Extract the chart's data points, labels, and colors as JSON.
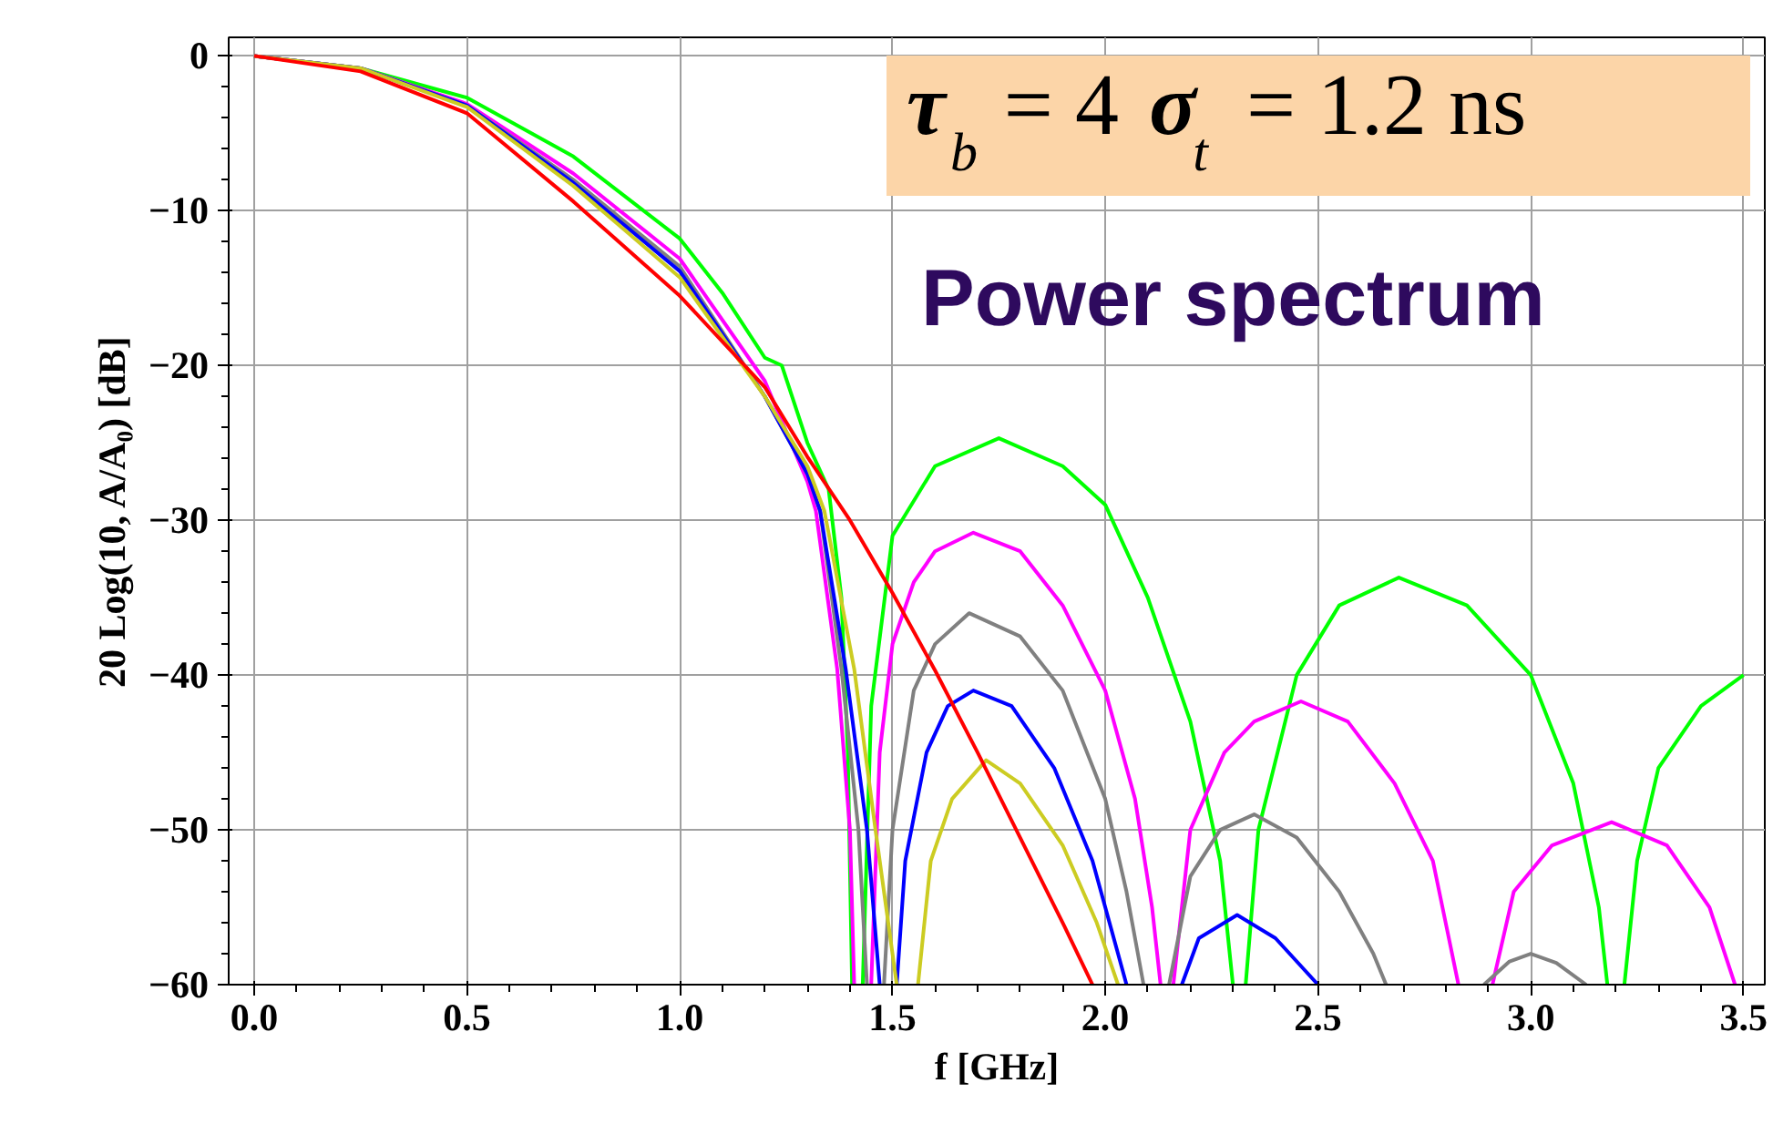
{
  "chart_data": {
    "type": "line",
    "xlabel": "f [GHz]",
    "ylabel": "20 Log(10, A/A₀) [dB]",
    "annotations": [
      "τ$_{b}$ = 4 σ$_{t}$ = 1.2 ns",
      "Power spectrum"
    ],
    "xlim": [
      -0.06,
      3.55
    ],
    "ylim": [
      -60,
      1.2
    ],
    "xticks": [
      {
        "value": 0,
        "label": "0.0"
      },
      {
        "value": 0.5,
        "label": "0.5"
      },
      {
        "value": 1,
        "label": "1.0"
      },
      {
        "value": 1.5,
        "label": "1.5"
      },
      {
        "value": 2,
        "label": "2.0"
      },
      {
        "value": 2.5,
        "label": "2.5"
      },
      {
        "value": 3,
        "label": "3.0"
      },
      {
        "value": 3.5,
        "label": "3.5"
      }
    ],
    "yticks": [
      0,
      {
        "value": -10,
        "label": "−10"
      },
      {
        "value": -20,
        "label": "−20"
      },
      {
        "value": -30,
        "label": "−30"
      },
      {
        "value": -40,
        "label": "−40"
      },
      {
        "value": -50,
        "label": "−50"
      },
      {
        "value": -60,
        "label": "−60"
      }
    ],
    "grid": true,
    "line_style": "solid",
    "marker": "none",
    "series": [
      {
        "color": "#00ff00",
        "x": [
          0,
          0.25,
          0.5,
          0.75,
          1.0,
          1.1,
          1.2,
          1.24,
          1.3,
          1.35,
          1.38,
          1.395,
          1.405,
          1.42,
          1.43,
          1.45,
          1.5,
          1.6,
          1.75,
          1.9,
          2.0,
          2.1,
          2.2,
          2.27,
          2.3,
          2.315,
          2.33,
          2.36,
          2.45,
          2.55,
          2.69,
          2.85,
          3.0,
          3.1,
          3.16,
          3.18,
          3.2,
          3.22,
          3.25,
          3.3,
          3.4,
          3.5
        ],
        "values": [
          0,
          -0.8,
          -2.7,
          -6.5,
          -11.8,
          -15.3,
          -19.5,
          -20,
          -25,
          -28,
          -35,
          -45,
          -60,
          null,
          -60,
          -42,
          -31,
          -26.5,
          -24.7,
          -26.5,
          -29,
          -35,
          -43,
          -52,
          -60,
          null,
          -60,
          -50,
          -40,
          -35.5,
          -33.7,
          -35.5,
          -40,
          -47,
          -55,
          -60,
          null,
          -60,
          -52,
          -46,
          -42,
          -40
        ]
      },
      {
        "color": "#ff00ff",
        "x": [
          0,
          0.25,
          0.5,
          0.75,
          1.0,
          1.2,
          1.3,
          1.32,
          1.37,
          1.4,
          1.41,
          1.43,
          1.45,
          1.47,
          1.5,
          1.55,
          1.6,
          1.69,
          1.8,
          1.9,
          2.0,
          2.07,
          2.11,
          2.13,
          2.145,
          2.16,
          2.2,
          2.28,
          2.35,
          2.46,
          2.57,
          2.68,
          2.77,
          2.83,
          2.87,
          2.91,
          2.96,
          3.05,
          3.19,
          3.32,
          3.42,
          3.48
        ],
        "values": [
          0,
          -0.8,
          -3.1,
          -7.6,
          -13.1,
          -21,
          -27.5,
          -29.4,
          -39.6,
          -50,
          -60,
          null,
          -60,
          -45,
          -38,
          -34,
          -32,
          -30.8,
          -32,
          -35.5,
          -41,
          -48,
          -55,
          -60,
          null,
          -60,
          -50,
          -45,
          -43,
          -41.7,
          -43,
          -47,
          -52,
          -60,
          null,
          -60,
          -54,
          -51,
          -49.5,
          -51,
          -55,
          -60
        ]
      },
      {
        "color": "#808080",
        "x": [
          0,
          0.25,
          0.5,
          0.75,
          1.0,
          1.2,
          1.3,
          1.33,
          1.38,
          1.42,
          1.44,
          1.46,
          1.48,
          1.5,
          1.55,
          1.6,
          1.68,
          1.8,
          1.9,
          2.0,
          2.05,
          2.09,
          2.12,
          2.15,
          2.2,
          2.27,
          2.35,
          2.45,
          2.55,
          2.63,
          2.66,
          2.78,
          2.89,
          2.95,
          3.0,
          3.06,
          3.13
        ],
        "values": [
          0,
          -0.8,
          -3.2,
          -8.0,
          -13.6,
          -22,
          -27,
          -29.4,
          -39.6,
          -50,
          -60,
          null,
          -60,
          -50,
          -41,
          -38,
          -36,
          -37.5,
          -41,
          -48,
          -54,
          -60,
          null,
          -60,
          -53,
          -50,
          -49,
          -50.5,
          -54,
          -58,
          -60,
          null,
          -60,
          -58.5,
          -58,
          -58.6,
          -60
        ]
      },
      {
        "color": "#0000ff",
        "x": [
          0,
          0.25,
          0.5,
          0.75,
          1.0,
          1.2,
          1.3,
          1.33,
          1.39,
          1.44,
          1.47,
          1.49,
          1.51,
          1.53,
          1.58,
          1.63,
          1.69,
          1.78,
          1.88,
          1.97,
          2.03,
          2.05,
          2.12,
          2.18,
          2.22,
          2.31,
          2.4,
          2.5
        ],
        "values": [
          0,
          -0.8,
          -3.2,
          -8.2,
          -13.9,
          -22,
          -27,
          -29.4,
          -39.6,
          -50,
          -60,
          null,
          -60,
          -52,
          -45,
          -42,
          -41,
          -42,
          -46,
          -52,
          -58,
          -60,
          null,
          -60,
          -57,
          -55.5,
          -57,
          -60
        ]
      },
      {
        "color": "#cccc22",
        "x": [
          0,
          0.25,
          0.5,
          0.75,
          1.0,
          1.2,
          1.3,
          1.34,
          1.41,
          1.46,
          1.51,
          1.535,
          1.56,
          1.59,
          1.64,
          1.72,
          1.8,
          1.9,
          1.98,
          2.03
        ],
        "values": [
          0,
          -0.8,
          -3.3,
          -8.4,
          -14.3,
          -22,
          -26.5,
          -29.4,
          -39.6,
          -50,
          -60,
          null,
          -60,
          -52,
          -48,
          -45.5,
          -47,
          -51,
          -56,
          -60
        ]
      },
      {
        "color": "#ff0000",
        "x": [
          0,
          0.25,
          0.5,
          0.75,
          1.0,
          1.2,
          1.3,
          1.4,
          1.5,
          1.6,
          1.7,
          1.8,
          1.9,
          1.97
        ],
        "values": [
          0,
          -1.0,
          -3.7,
          -9.4,
          -15.5,
          -21.4,
          -25.9,
          -30,
          -34.7,
          -39.7,
          -45,
          -50.5,
          -56,
          -60
        ]
      }
    ]
  }
}
